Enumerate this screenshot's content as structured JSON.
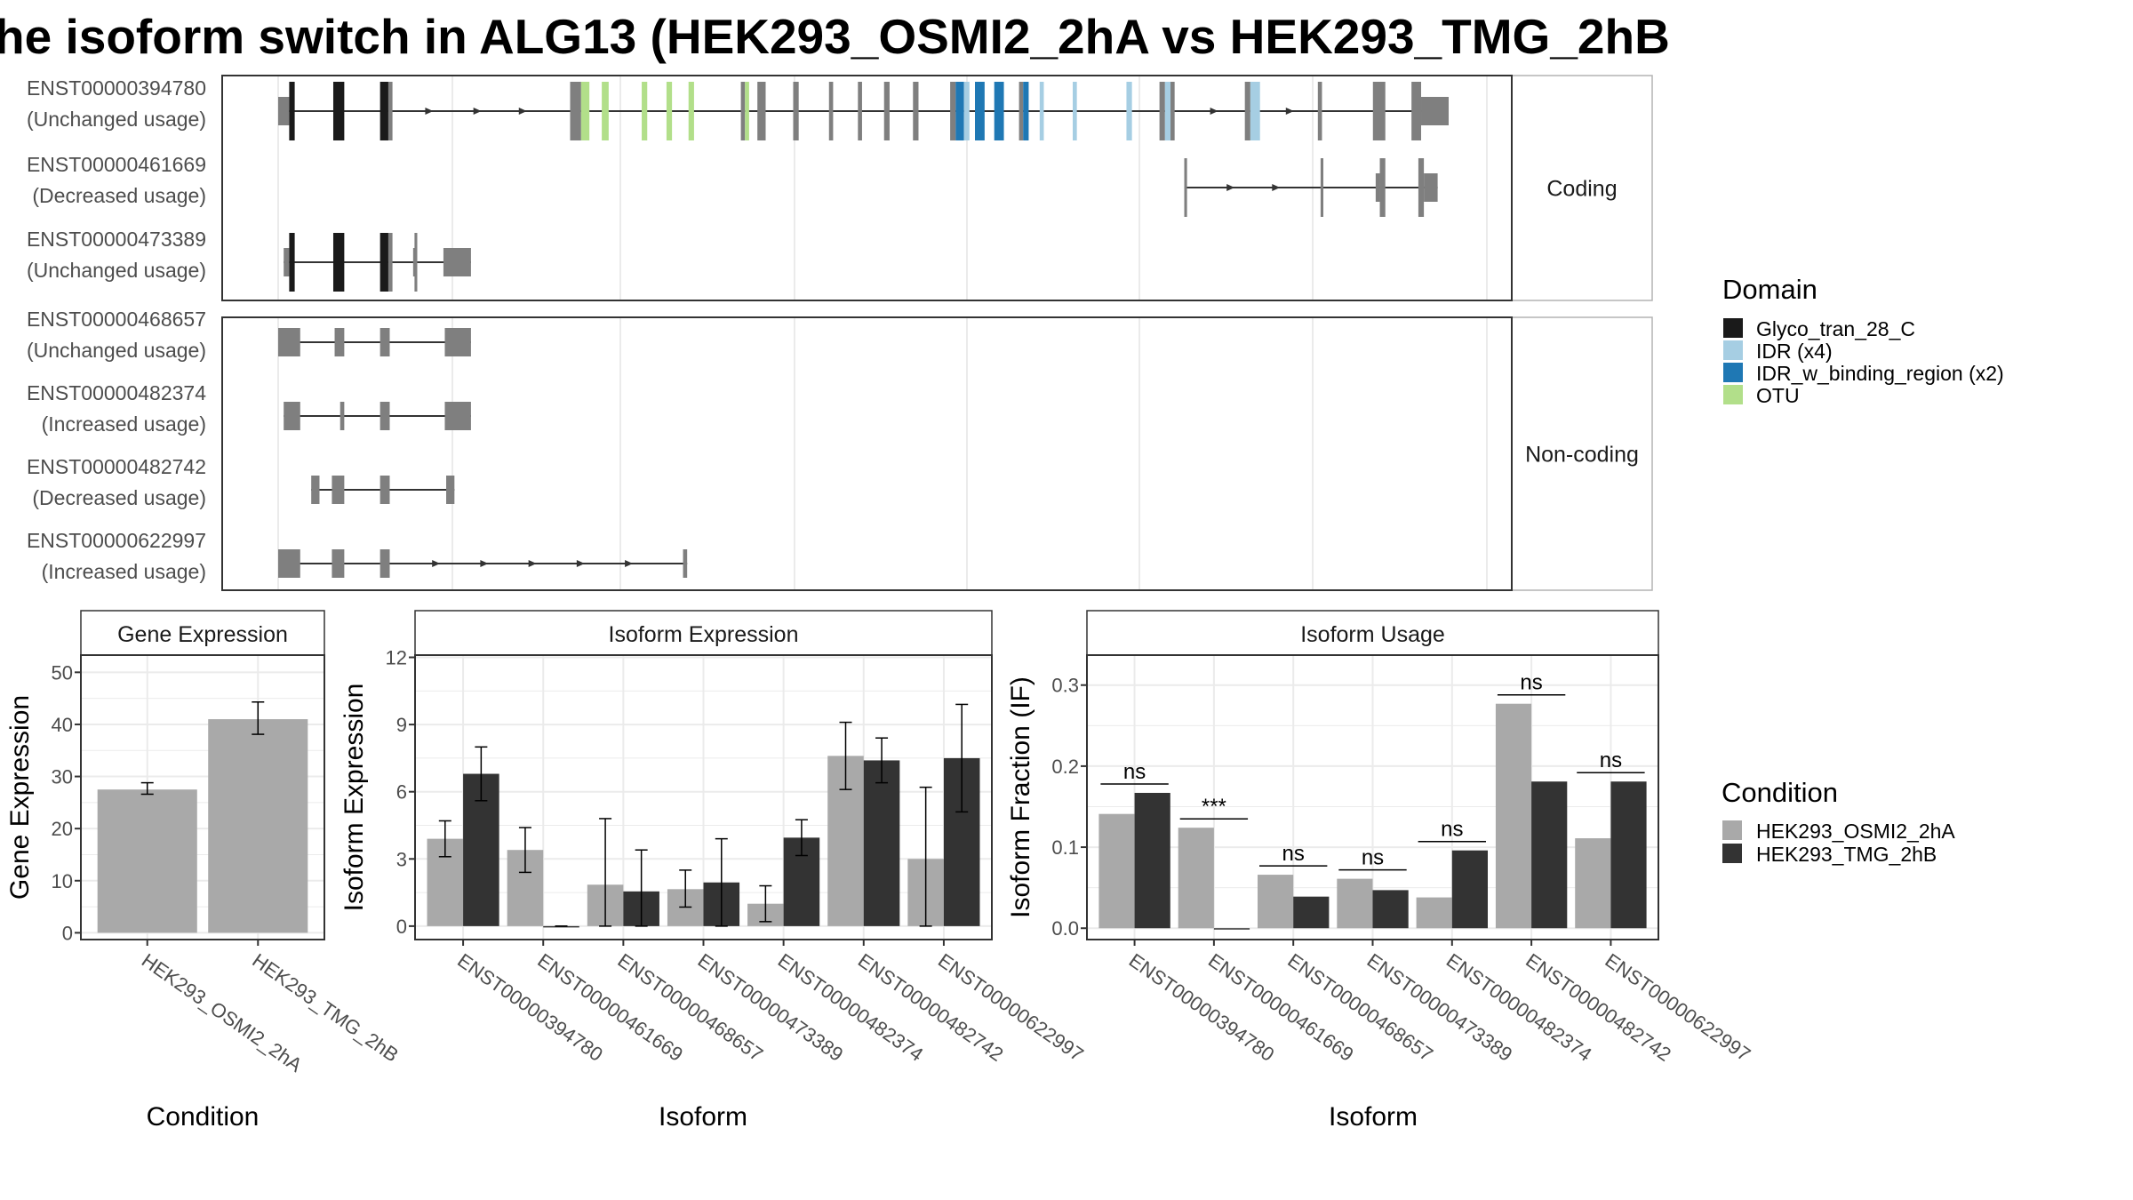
{
  "title": "he isoform switch in ALG13 (HEK293_OSMI2_2hA vs HEK293_TMG_2hB",
  "colors": {
    "background": "#ffffff",
    "panel_border": "#333333",
    "strip_fill": "#ffffff",
    "grid": "#ebebeb",
    "exon": "#7f7f7f",
    "intron": "#333333",
    "condition_1": "#a9a9a9",
    "condition_2": "#333333"
  },
  "chart_data": [
    {
      "type": "isoform_structure",
      "domain_legend": {
        "title": "Domain",
        "items": [
          {
            "label": "Glyco_tran_28_C",
            "color": "#1a1a1a"
          },
          {
            "label": "IDR (x4)",
            "color": "#a6cee3"
          },
          {
            "label": "IDR_w_binding_region (x2)",
            "color": "#1f78b4"
          },
          {
            "label": "OTU",
            "color": "#b2df8a"
          }
        ]
      },
      "facets": [
        {
          "label": "Coding",
          "isoforms": [
            {
              "id": "ENST00000394780",
              "usage": "(Unchanged usage)",
              "span": [
                0,
                850
              ],
              "arrows": [
                110,
                145,
                178,
                680,
                735
              ],
              "exons": [
                {
                  "s": 0,
                  "e": 8,
                  "h": "small"
                },
                {
                  "s": 8,
                  "e": 12,
                  "h": "big",
                  "d": 0
                },
                {
                  "s": 40,
                  "e": 48,
                  "h": "big",
                  "d": 0
                },
                {
                  "s": 74,
                  "e": 80,
                  "h": "big",
                  "d": 0
                },
                {
                  "s": 80,
                  "e": 83,
                  "h": "big"
                },
                {
                  "s": 212,
                  "e": 220,
                  "h": "big"
                },
                {
                  "s": 220,
                  "e": 226,
                  "h": "big",
                  "d": 3
                },
                {
                  "s": 235,
                  "e": 240,
                  "h": "big",
                  "d": 3
                },
                {
                  "s": 264,
                  "e": 268,
                  "h": "big",
                  "d": 3
                },
                {
                  "s": 282,
                  "e": 286,
                  "h": "big",
                  "d": 3
                },
                {
                  "s": 298,
                  "e": 302,
                  "h": "big",
                  "d": 3
                },
                {
                  "s": 336,
                  "e": 339,
                  "h": "big"
                },
                {
                  "s": 339,
                  "e": 342,
                  "h": "big",
                  "d": 3
                },
                {
                  "s": 348,
                  "e": 354,
                  "h": "big"
                },
                {
                  "s": 374,
                  "e": 378,
                  "h": "big"
                },
                {
                  "s": 400,
                  "e": 403,
                  "h": "big"
                },
                {
                  "s": 421,
                  "e": 424,
                  "h": "big"
                },
                {
                  "s": 440,
                  "e": 444,
                  "h": "big"
                },
                {
                  "s": 461,
                  "e": 465,
                  "h": "big"
                },
                {
                  "s": 488,
                  "e": 492,
                  "h": "big"
                },
                {
                  "s": 492,
                  "e": 498,
                  "h": "big",
                  "d": 2
                },
                {
                  "s": 498,
                  "e": 502,
                  "h": "big",
                  "d": 1
                },
                {
                  "s": 506,
                  "e": 513,
                  "h": "big",
                  "d": 2
                },
                {
                  "s": 520,
                  "e": 527,
                  "h": "big",
                  "d": 2
                },
                {
                  "s": 538,
                  "e": 541,
                  "h": "big"
                },
                {
                  "s": 541,
                  "e": 545,
                  "h": "big",
                  "d": 2
                },
                {
                  "s": 553,
                  "e": 556,
                  "h": "big",
                  "d": 1
                },
                {
                  "s": 577,
                  "e": 580,
                  "h": "big",
                  "d": 1
                },
                {
                  "s": 616,
                  "e": 620,
                  "h": "big",
                  "d": 1
                },
                {
                  "s": 640,
                  "e": 644,
                  "h": "big"
                },
                {
                  "s": 644,
                  "e": 648,
                  "h": "big",
                  "d": 1
                },
                {
                  "s": 648,
                  "e": 651,
                  "h": "big"
                },
                {
                  "s": 702,
                  "e": 706,
                  "h": "big"
                },
                {
                  "s": 706,
                  "e": 713,
                  "h": "big",
                  "d": 1
                },
                {
                  "s": 755,
                  "e": 758,
                  "h": "big"
                },
                {
                  "s": 795,
                  "e": 804,
                  "h": "big"
                },
                {
                  "s": 823,
                  "e": 830,
                  "h": "big"
                },
                {
                  "s": 830,
                  "e": 850,
                  "h": "small"
                }
              ]
            },
            {
              "id": "ENST00000461669",
              "usage": "(Decreased usage)",
              "span": [
                658,
                842
              ],
              "arrows": [
                692,
                725
              ],
              "exons": [
                {
                  "s": 658,
                  "e": 660,
                  "h": "big"
                },
                {
                  "s": 757,
                  "e": 759,
                  "h": "big"
                },
                {
                  "s": 797,
                  "e": 800,
                  "h": "small"
                },
                {
                  "s": 800,
                  "e": 804,
                  "h": "big"
                },
                {
                  "s": 828,
                  "e": 832,
                  "h": "big"
                },
                {
                  "s": 832,
                  "e": 842,
                  "h": "small"
                }
              ]
            },
            {
              "id": "ENST00000473389",
              "usage": "(Unchanged usage)",
              "span": [
                4,
                140
              ],
              "arrows": [],
              "exons": [
                {
                  "s": 4,
                  "e": 8,
                  "h": "small"
                },
                {
                  "s": 8,
                  "e": 12,
                  "h": "big",
                  "d": 0
                },
                {
                  "s": 40,
                  "e": 48,
                  "h": "big",
                  "d": 0
                },
                {
                  "s": 74,
                  "e": 80,
                  "h": "big",
                  "d": 0
                },
                {
                  "s": 80,
                  "e": 83,
                  "h": "big"
                },
                {
                  "s": 98,
                  "e": 101,
                  "h": "small"
                },
                {
                  "s": 99,
                  "e": 101,
                  "h": "big"
                },
                {
                  "s": 120,
                  "e": 140,
                  "h": "small"
                }
              ]
            }
          ]
        },
        {
          "label": "Non-coding",
          "isoforms": [
            {
              "id": "ENST00000468657",
              "usage": "(Unchanged usage)",
              "span": [
                0,
                140
              ],
              "arrows": [],
              "exons": [
                {
                  "s": 0,
                  "e": 16,
                  "h": "small"
                },
                {
                  "s": 41,
                  "e": 48,
                  "h": "small"
                },
                {
                  "s": 74,
                  "e": 81,
                  "h": "small"
                },
                {
                  "s": 121,
                  "e": 140,
                  "h": "small"
                }
              ]
            },
            {
              "id": "ENST00000482374",
              "usage": "(Increased usage)",
              "span": [
                4,
                140
              ],
              "arrows": [],
              "exons": [
                {
                  "s": 4,
                  "e": 16,
                  "h": "small"
                },
                {
                  "s": 45,
                  "e": 48,
                  "h": "small"
                },
                {
                  "s": 74,
                  "e": 81,
                  "h": "small"
                },
                {
                  "s": 121,
                  "e": 140,
                  "h": "small"
                }
              ]
            },
            {
              "id": "ENST00000482742",
              "usage": "(Decreased usage)",
              "span": [
                24,
                128
              ],
              "arrows": [],
              "exons": [
                {
                  "s": 24,
                  "e": 30,
                  "h": "small"
                },
                {
                  "s": 39,
                  "e": 48,
                  "h": "small"
                },
                {
                  "s": 74,
                  "e": 81,
                  "h": "small"
                },
                {
                  "s": 122,
                  "e": 128,
                  "h": "small"
                }
              ]
            },
            {
              "id": "ENST00000622997",
              "usage": "(Increased usage)",
              "span": [
                0,
                297
              ],
              "arrows": [
                115,
                150,
                185,
                220,
                255
              ],
              "exons": [
                {
                  "s": 0,
                  "e": 16,
                  "h": "small"
                },
                {
                  "s": 39,
                  "e": 48,
                  "h": "small"
                },
                {
                  "s": 74,
                  "e": 81,
                  "h": "small"
                },
                {
                  "s": 294,
                  "e": 297,
                  "h": "small"
                }
              ]
            }
          ]
        }
      ]
    },
    {
      "type": "bar",
      "title": "Gene Expression",
      "xlabel": "Condition",
      "ylabel": "Gene Expression",
      "ylim": [
        -1.3,
        53.3
      ],
      "yticks": [
        0,
        10,
        20,
        30,
        40,
        50
      ],
      "categories": [
        "HEK293_OSMI2_2hA",
        "HEK293_TMG_2hB"
      ],
      "values": [
        27.5,
        41
      ],
      "errors": [
        [
          26.6,
          28.8
        ],
        [
          38.1,
          44.3
        ]
      ]
    },
    {
      "type": "bar",
      "title": "Isoform Expression",
      "xlabel": "Isoform",
      "ylabel": "Isoform Expression",
      "ylim": [
        -0.6,
        12.1
      ],
      "yticks": [
        0,
        3,
        6,
        9,
        12
      ],
      "categories": [
        "ENST00000394780",
        "ENST00000461669",
        "ENST00000468657",
        "ENST00000473389",
        "ENST00000482374",
        "ENST00000482742",
        "ENST00000622997"
      ],
      "series": [
        {
          "name": "HEK293_OSMI2_2hA",
          "values": [
            3.9,
            3.4,
            1.85,
            1.65,
            1.0,
            7.6,
            3.0
          ],
          "errors": [
            [
              3.1,
              4.7
            ],
            [
              2.4,
              4.4
            ],
            [
              0.0,
              4.8
            ],
            [
              0.85,
              2.5
            ],
            [
              0.2,
              1.8
            ],
            [
              6.1,
              9.1
            ],
            [
              0.0,
              6.2
            ]
          ]
        },
        {
          "name": "HEK293_TMG_2hB",
          "values": [
            6.8,
            0.0,
            1.55,
            1.95,
            3.95,
            7.4,
            7.5
          ],
          "errors": [
            [
              5.6,
              8.0
            ],
            [
              0.0,
              0.0
            ],
            [
              0.0,
              3.4
            ],
            [
              0.0,
              3.9
            ],
            [
              3.15,
              4.75
            ],
            [
              6.4,
              8.4
            ],
            [
              5.1,
              9.9
            ]
          ]
        }
      ]
    },
    {
      "type": "bar",
      "title": "Isoform Usage",
      "xlabel": "Isoform",
      "ylabel": "Isoform Fraction (IF)",
      "ylim": [
        -0.014,
        0.337
      ],
      "yticks": [
        0.0,
        0.1,
        0.2,
        0.3
      ],
      "ytick_labels": [
        "0.0",
        "0.1",
        "0.2",
        "0.3"
      ],
      "categories": [
        "ENST00000394780",
        "ENST00000461669",
        "ENST00000468657",
        "ENST00000473389",
        "ENST00000482374",
        "ENST00000482742",
        "ENST00000622997"
      ],
      "series": [
        {
          "name": "HEK293_OSMI2_2hA",
          "values": [
            0.141,
            0.124,
            0.066,
            0.061,
            0.038,
            0.277,
            0.111
          ]
        },
        {
          "name": "HEK293_TMG_2hB",
          "values": [
            0.167,
            0.0,
            0.039,
            0.047,
            0.096,
            0.181,
            0.181
          ]
        }
      ],
      "significance": [
        "ns",
        "***",
        "ns",
        "ns",
        "ns",
        "ns",
        "ns"
      ]
    }
  ],
  "condition_legend": {
    "title": "Condition",
    "items": [
      {
        "label": "HEK293_OSMI2_2hA",
        "color": "#a9a9a9"
      },
      {
        "label": "HEK293_TMG_2hB",
        "color": "#333333"
      }
    ]
  }
}
